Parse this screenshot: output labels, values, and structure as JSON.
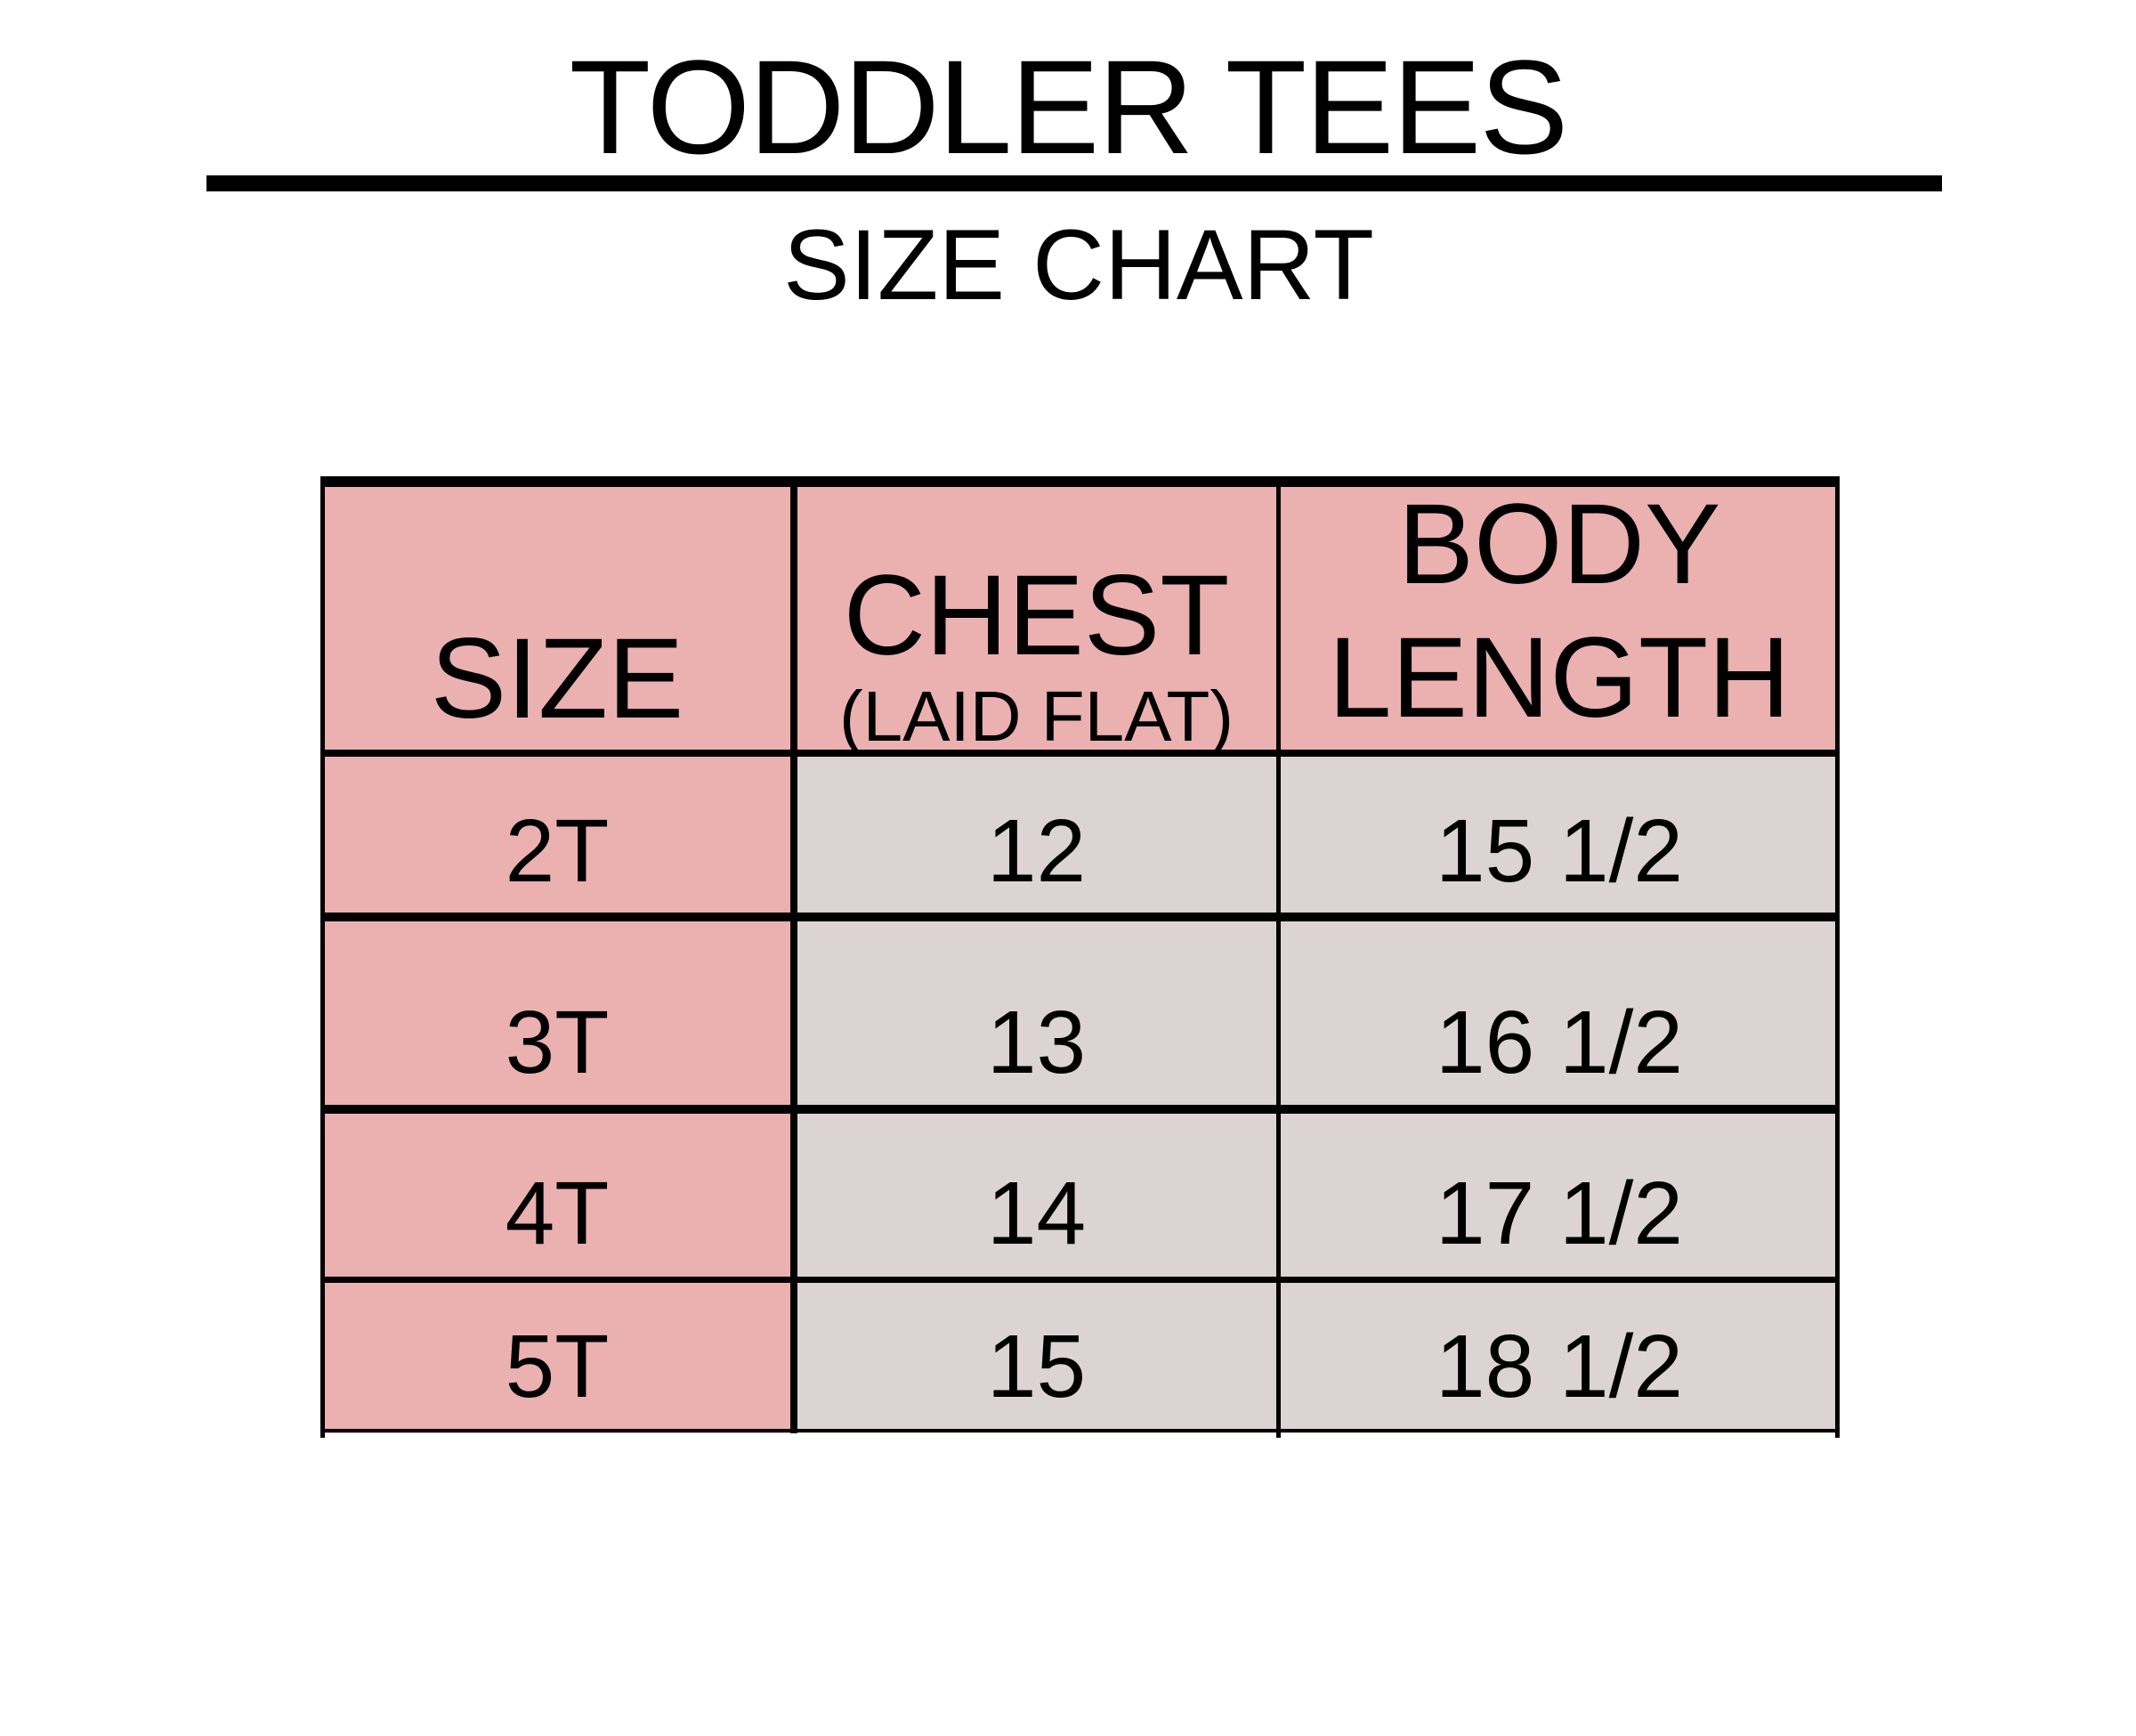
{
  "title": "TODDLER TEES",
  "subtitle": "SIZE CHART",
  "colors": {
    "header_fill": "#ebb0b0",
    "size_column_fill": "#ebb0b0",
    "body_fill": "#dcd3d4"
  },
  "table": {
    "headers": {
      "size": "SIZE",
      "chest": "CHEST",
      "chest_note": "(LAID FLAT)",
      "body_length_line1": "BODY",
      "body_length_line2": "LENGTH"
    },
    "rows": [
      {
        "size": "2T",
        "chest": "12",
        "body_length": "15 1/2"
      },
      {
        "size": "3T",
        "chest": "13",
        "body_length": "16 1/2"
      },
      {
        "size": "4T",
        "chest": "14",
        "body_length": "17 1/2"
      },
      {
        "size": "5T",
        "chest": "15",
        "body_length": "18 1/2"
      }
    ]
  }
}
